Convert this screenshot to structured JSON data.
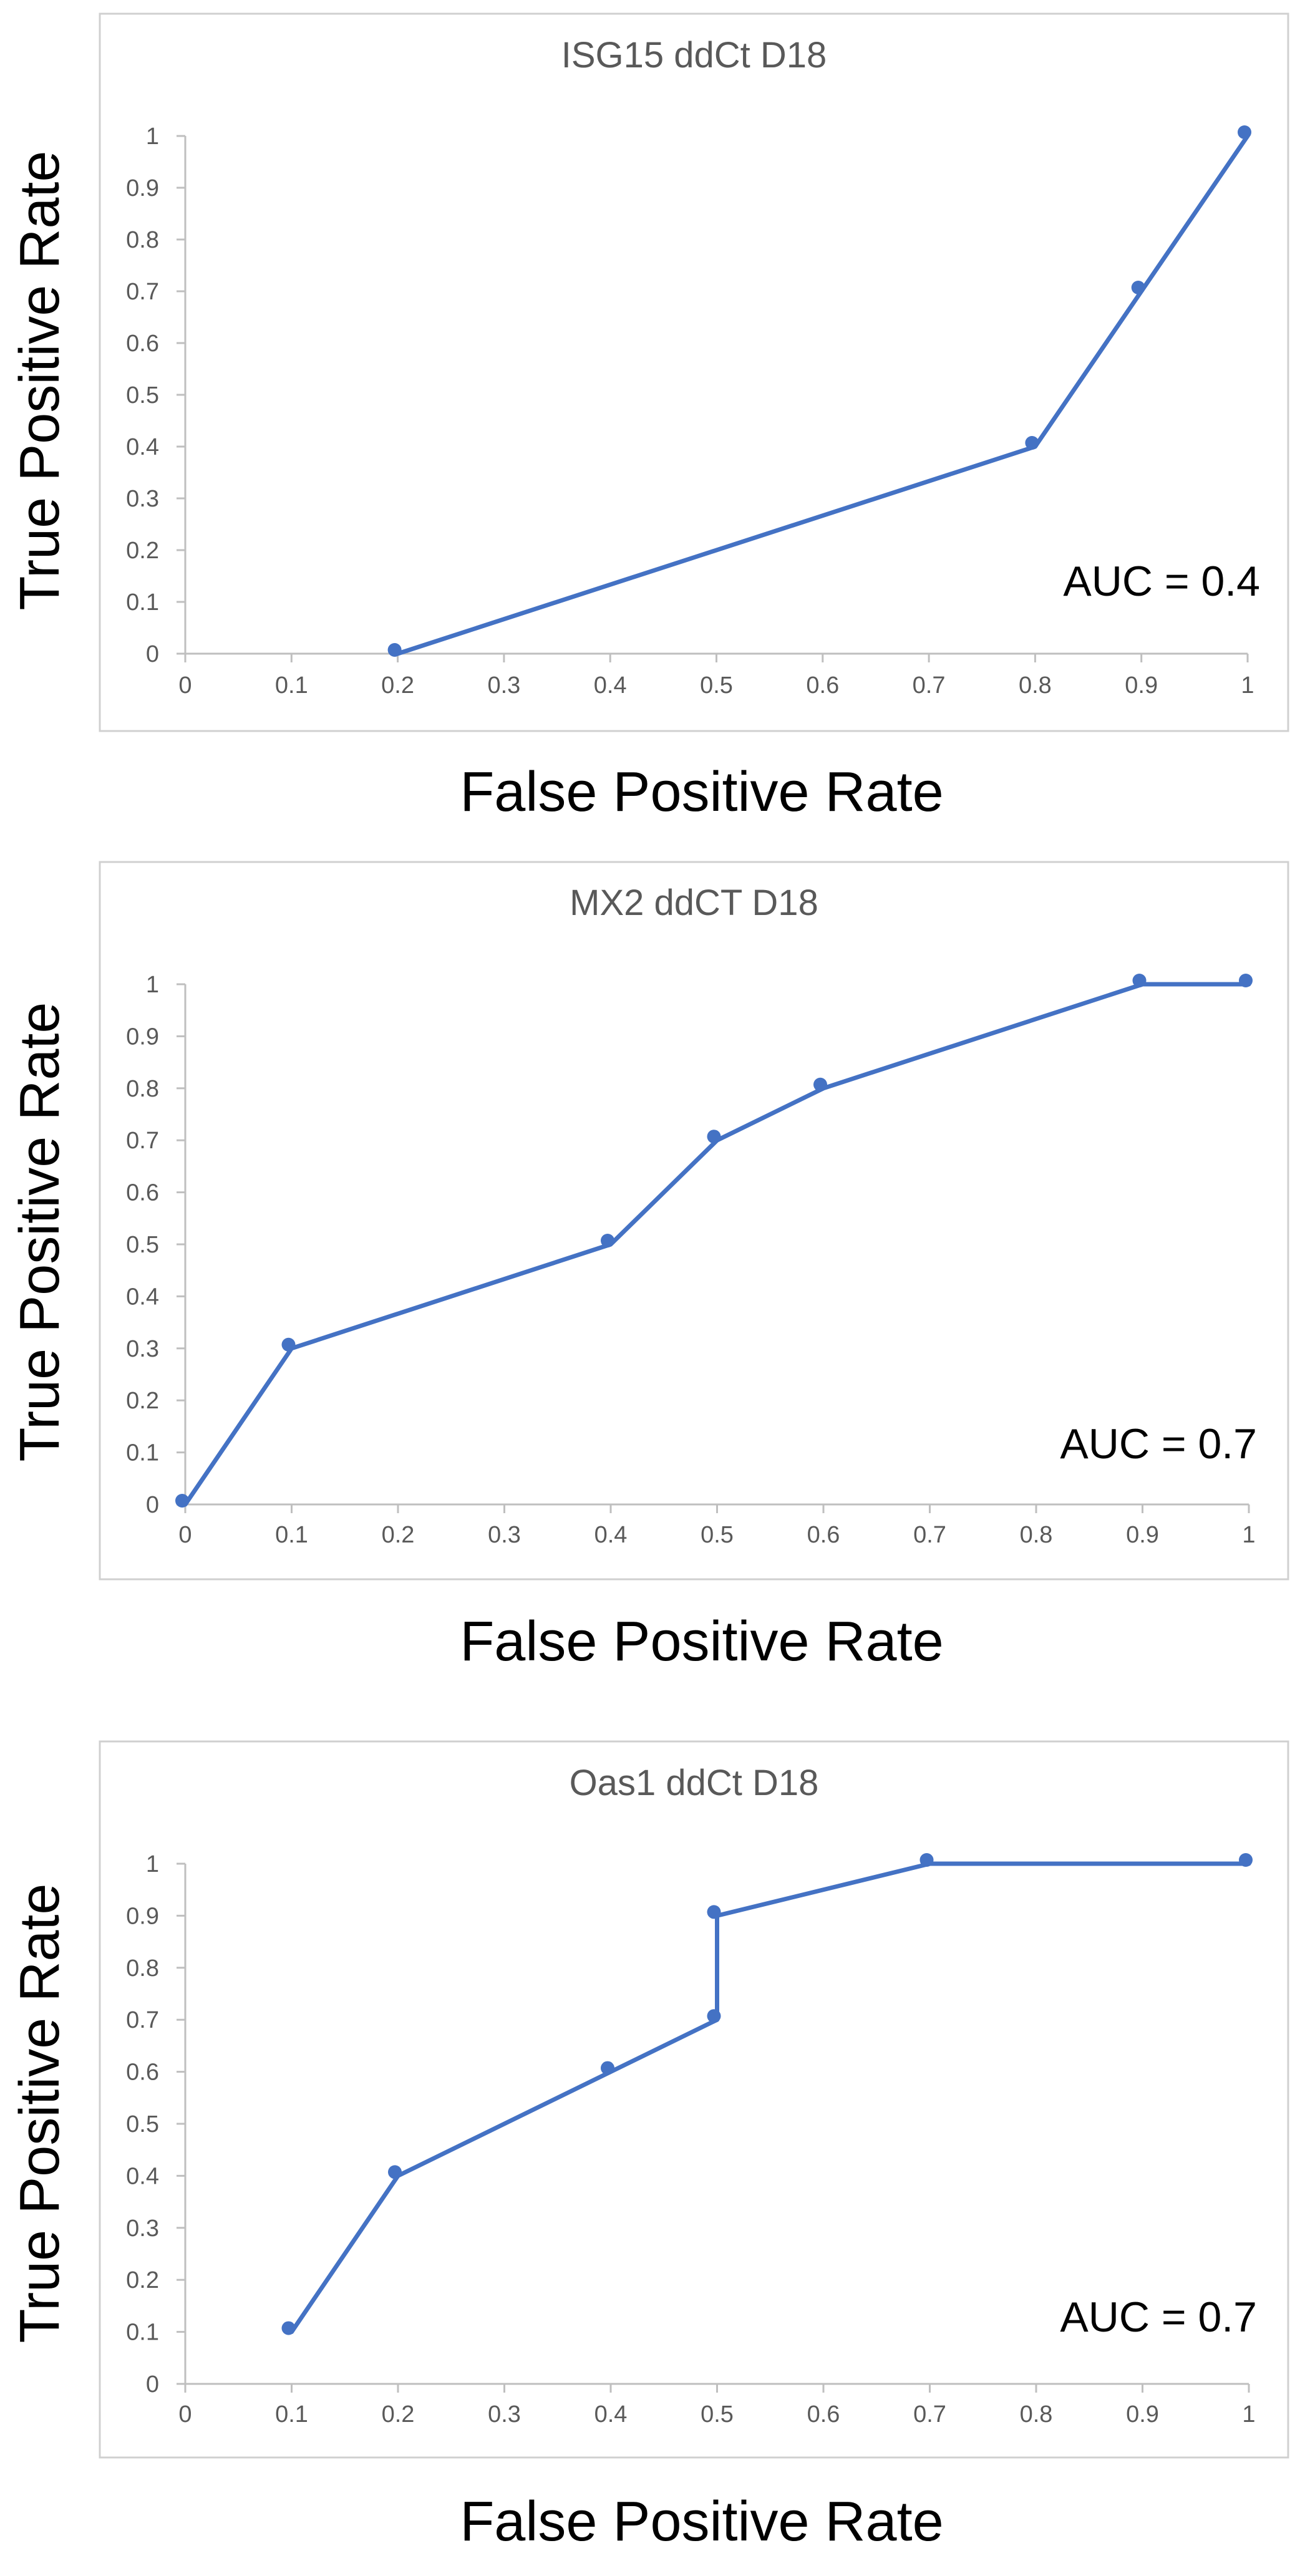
{
  "chart_data": [
    {
      "type": "line",
      "title": "ISG15 ddCt D18",
      "xlabel": "False Positive Rate",
      "ylabel": "True Positive Rate",
      "annotation": "AUC = 0.4",
      "xlim": [
        0,
        1
      ],
      "ylim": [
        0,
        1
      ],
      "xticks": [
        "0",
        "0.1",
        "0.2",
        "0.3",
        "0.4",
        "0.5",
        "0.6",
        "0.7",
        "0.8",
        "0.9",
        "1"
      ],
      "yticks": [
        "0",
        "0.1",
        "0.2",
        "0.3",
        "0.4",
        "0.5",
        "0.6",
        "0.7",
        "0.8",
        "0.9",
        "1"
      ],
      "grid": false,
      "color": "#4472C4",
      "points": [
        {
          "x": 0.2,
          "y": 0.0
        },
        {
          "x": 0.8,
          "y": 0.4
        },
        {
          "x": 0.9,
          "y": 0.7
        },
        {
          "x": 1.0,
          "y": 1.0
        }
      ],
      "line": [
        {
          "x": 0.2,
          "y": 0.0
        },
        {
          "x": 0.8,
          "y": 0.4
        },
        {
          "x": 1.0,
          "y": 1.0
        }
      ]
    },
    {
      "type": "line",
      "title": "MX2 ddCT D18",
      "xlabel": "False Positive Rate",
      "ylabel": "True Positive Rate",
      "annotation": "AUC = 0.7",
      "xlim": [
        0,
        1
      ],
      "ylim": [
        0,
        1
      ],
      "xticks": [
        "0",
        "0.1",
        "0.2",
        "0.3",
        "0.4",
        "0.5",
        "0.6",
        "0.7",
        "0.8",
        "0.9",
        "1"
      ],
      "yticks": [
        "0",
        "0.1",
        "0.2",
        "0.3",
        "0.4",
        "0.5",
        "0.6",
        "0.7",
        "0.8",
        "0.9",
        "1"
      ],
      "grid": false,
      "color": "#4472C4",
      "points": [
        {
          "x": 0.0,
          "y": 0.0
        },
        {
          "x": 0.1,
          "y": 0.3
        },
        {
          "x": 0.4,
          "y": 0.5
        },
        {
          "x": 0.5,
          "y": 0.7
        },
        {
          "x": 0.6,
          "y": 0.8
        },
        {
          "x": 0.9,
          "y": 1.0
        },
        {
          "x": 1.0,
          "y": 1.0
        }
      ],
      "line": [
        {
          "x": 0.0,
          "y": 0.0
        },
        {
          "x": 0.1,
          "y": 0.3
        },
        {
          "x": 0.4,
          "y": 0.5
        },
        {
          "x": 0.5,
          "y": 0.7
        },
        {
          "x": 0.6,
          "y": 0.8
        },
        {
          "x": 0.9,
          "y": 1.0
        },
        {
          "x": 1.0,
          "y": 1.0
        }
      ]
    },
    {
      "type": "line",
      "title": "Oas1 ddCt D18",
      "xlabel": "False Positive Rate",
      "ylabel": "True Positive Rate",
      "annotation": "AUC = 0.7",
      "xlim": [
        0,
        1
      ],
      "ylim": [
        0,
        1
      ],
      "xticks": [
        "0",
        "0.1",
        "0.2",
        "0.3",
        "0.4",
        "0.5",
        "0.6",
        "0.7",
        "0.8",
        "0.9",
        "1"
      ],
      "yticks": [
        "0",
        "0.1",
        "0.2",
        "0.3",
        "0.4",
        "0.5",
        "0.6",
        "0.7",
        "0.8",
        "0.9",
        "1"
      ],
      "grid": false,
      "color": "#4472C4",
      "points": [
        {
          "x": 0.1,
          "y": 0.1
        },
        {
          "x": 0.2,
          "y": 0.4
        },
        {
          "x": 0.4,
          "y": 0.6
        },
        {
          "x": 0.5,
          "y": 0.7
        },
        {
          "x": 0.5,
          "y": 0.9
        },
        {
          "x": 0.7,
          "y": 1.0
        },
        {
          "x": 1.0,
          "y": 1.0
        }
      ],
      "line": [
        {
          "x": 0.1,
          "y": 0.1
        },
        {
          "x": 0.2,
          "y": 0.4
        },
        {
          "x": 0.5,
          "y": 0.7
        },
        {
          "x": 0.5,
          "y": 0.9
        },
        {
          "x": 0.7,
          "y": 1.0
        },
        {
          "x": 1.0,
          "y": 1.0
        }
      ]
    }
  ]
}
